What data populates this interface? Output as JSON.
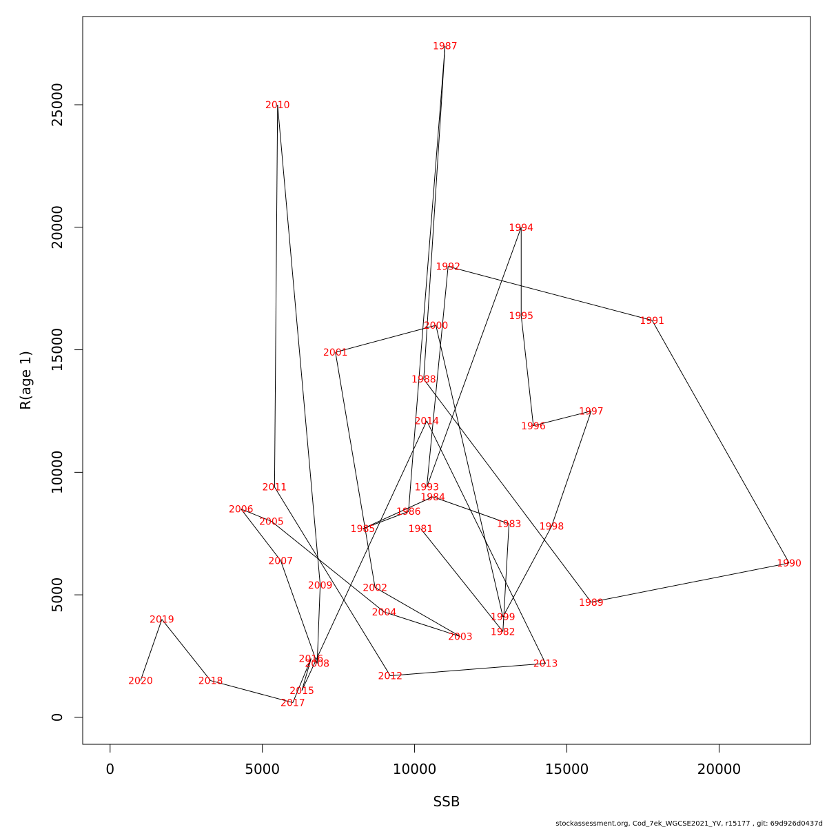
{
  "chart_data": {
    "type": "line",
    "xlabel": "SSB",
    "ylabel": "R(age 1)",
    "xlim": [
      -900,
      23000
    ],
    "ylim": [
      -1100,
      28600
    ],
    "xticks": [
      0,
      5000,
      10000,
      15000,
      20000
    ],
    "yticks": [
      0,
      5000,
      10000,
      15000,
      20000,
      25000
    ],
    "label_color": "#ff0000",
    "line_color": "#000000",
    "points": [
      {
        "year": "1981",
        "x": 10200,
        "y": 7700
      },
      {
        "year": "1982",
        "x": 12900,
        "y": 3500
      },
      {
        "year": "1983",
        "x": 13100,
        "y": 7900
      },
      {
        "year": "1984",
        "x": 10600,
        "y": 9000
      },
      {
        "year": "1985",
        "x": 8300,
        "y": 7700
      },
      {
        "year": "1986",
        "x": 9800,
        "y": 8400
      },
      {
        "year": "1987",
        "x": 11000,
        "y": 27400
      },
      {
        "year": "1988",
        "x": 10300,
        "y": 13800
      },
      {
        "year": "1989",
        "x": 15800,
        "y": 4700
      },
      {
        "year": "1990",
        "x": 22300,
        "y": 6300
      },
      {
        "year": "1991",
        "x": 17800,
        "y": 16200
      },
      {
        "year": "1992",
        "x": 11100,
        "y": 18400
      },
      {
        "year": "1993",
        "x": 10400,
        "y": 9400
      },
      {
        "year": "1994",
        "x": 13500,
        "y": 20000
      },
      {
        "year": "1995",
        "x": 13500,
        "y": 16400
      },
      {
        "year": "1996",
        "x": 13900,
        "y": 11900
      },
      {
        "year": "1997",
        "x": 15800,
        "y": 12500
      },
      {
        "year": "1998",
        "x": 14500,
        "y": 7800
      },
      {
        "year": "1999",
        "x": 12900,
        "y": 4100
      },
      {
        "year": "2000",
        "x": 10700,
        "y": 16000
      },
      {
        "year": "2001",
        "x": 7400,
        "y": 14900
      },
      {
        "year": "2002",
        "x": 8700,
        "y": 5300
      },
      {
        "year": "2003",
        "x": 11500,
        "y": 3300
      },
      {
        "year": "2004",
        "x": 9000,
        "y": 4300
      },
      {
        "year": "2005",
        "x": 5300,
        "y": 8000
      },
      {
        "year": "2006",
        "x": 4300,
        "y": 8500
      },
      {
        "year": "2007",
        "x": 5600,
        "y": 6400
      },
      {
        "year": "2008",
        "x": 6800,
        "y": 2200
      },
      {
        "year": "2009",
        "x": 6900,
        "y": 5400
      },
      {
        "year": "2010",
        "x": 5500,
        "y": 25000
      },
      {
        "year": "2011",
        "x": 5400,
        "y": 9400
      },
      {
        "year": "2012",
        "x": 9200,
        "y": 1700
      },
      {
        "year": "2013",
        "x": 14300,
        "y": 2200
      },
      {
        "year": "2014",
        "x": 10400,
        "y": 12100
      },
      {
        "year": "2015",
        "x": 6300,
        "y": 1100
      },
      {
        "year": "2016",
        "x": 6600,
        "y": 2400
      },
      {
        "year": "2017",
        "x": 6000,
        "y": 600
      },
      {
        "year": "2018",
        "x": 3300,
        "y": 1500
      },
      {
        "year": "2019",
        "x": 1700,
        "y": 4000
      },
      {
        "year": "2020",
        "x": 1000,
        "y": 1500
      }
    ]
  },
  "footer_text": "stockassessment.org, Cod_7ek_WGCSE2021_YV, r15177 , git: 69d926d0437d"
}
